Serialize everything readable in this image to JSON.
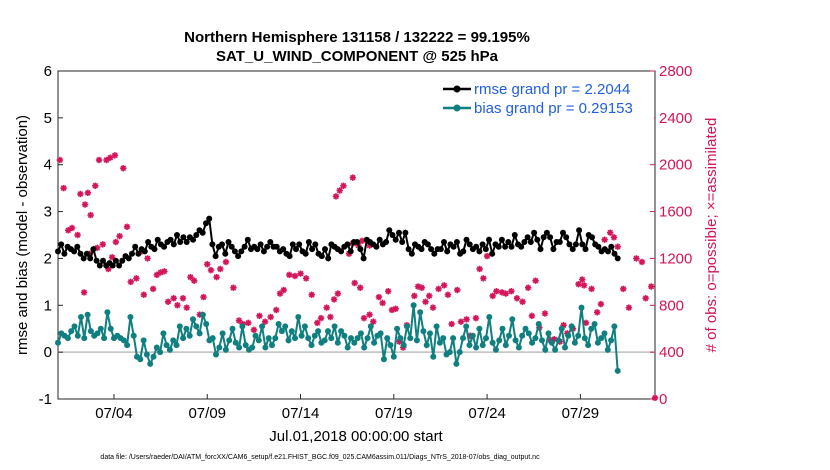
{
  "chart_data": {
    "type": "line",
    "title_line1": "Northern Hemisphere 131158 / 132222 = 99.195%",
    "title_line2": "SAT_U_WIND_COMPONENT @ 525 hPa",
    "xlabel": "Jul.01,2018 00:00:00 start",
    "ylabel_left": "rmse and bias (model - observation)",
    "ylabel_right": "# of obs: o=possible; ×=assimilated",
    "footnote": "data file: /Users/raeder/DAI/ATM_forcXX/CAM6_setup/f.e21.FHIST_BGC.f09_025.CAM6assim.011/Diags_NTrS_2018-07/obs_diag_output.nc",
    "x_tick_labels": [
      "07/04",
      "07/09",
      "07/14",
      "07/19",
      "07/24",
      "07/29"
    ],
    "x_tick_days": [
      4,
      9,
      14,
      19,
      24,
      29
    ],
    "xlim": [
      1,
      33
    ],
    "ylim_left": [
      -1,
      6
    ],
    "left_ticks": [
      "-1",
      "0",
      "1",
      "2",
      "3",
      "4",
      "5",
      "6"
    ],
    "left_tick_values": [
      -1,
      0,
      1,
      2,
      3,
      4,
      5,
      6
    ],
    "ylim_right": [
      0,
      2800
    ],
    "right_ticks": [
      "0",
      "400",
      "800",
      "1200",
      "1600",
      "2000",
      "2400",
      "2800"
    ],
    "right_tick_values": [
      0,
      400,
      800,
      1200,
      1600,
      2000,
      2400,
      2800
    ],
    "legend": [
      {
        "label": "rmse grand pr = 2.2044",
        "color": "#000000"
      },
      {
        "label": "bias grand pr = 0.29153",
        "color": "#0f7f7f"
      }
    ],
    "colors": {
      "rmse": "#000000",
      "bias": "#0f7f7f",
      "obs": "#d4145a",
      "zero_line": "#bdbdbd",
      "legend_text": "#1f5fe0"
    },
    "rmse": [
      2.15,
      2.3,
      2.1,
      2.25,
      2.2,
      2.15,
      2.25,
      2.1,
      2.0,
      2.1,
      2.0,
      2.2,
      1.95,
      1.85,
      1.95,
      1.85,
      1.9,
      1.85,
      1.95,
      1.85,
      1.95,
      2.05,
      2.0,
      2.1,
      2.25,
      2.1,
      2.2,
      2.15,
      2.35,
      2.25,
      2.2,
      2.4,
      2.3,
      2.25,
      2.35,
      2.4,
      2.3,
      2.5,
      2.35,
      2.45,
      2.35,
      2.45,
      2.4,
      2.5,
      2.6,
      2.55,
      2.75,
      2.85,
      2.3,
      2.05,
      2.25,
      2.3,
      2.1,
      2.35,
      2.25,
      2.15,
      2.05,
      2.15,
      2.25,
      2.4,
      2.2,
      2.25,
      2.2,
      2.3,
      2.15,
      2.25,
      2.35,
      2.25,
      2.25,
      2.15,
      2.2,
      2.1,
      2.05,
      2.3,
      2.2,
      2.3,
      2.15,
      2.1,
      2.35,
      2.2,
      2.3,
      2.1,
      2.05,
      2.2,
      2.0,
      2.3,
      2.25,
      2.2,
      2.15,
      2.25,
      2.3,
      2.15,
      2.35,
      2.35,
      2.2,
      2.0,
      2.4,
      2.35,
      2.3,
      2.25,
      2.4,
      2.3,
      2.35,
      2.6,
      2.5,
      2.4,
      2.55,
      2.35,
      2.55,
      2.2,
      2.1,
      2.3,
      2.25,
      2.2,
      2.35,
      2.3,
      2.2,
      2.1,
      2.2,
      2.2,
      2.35,
      2.15,
      2.3,
      2.25,
      2.35,
      2.1,
      2.15,
      2.4,
      2.3,
      2.2,
      2.25,
      2.15,
      2.3,
      2.2,
      2.4,
      2.1,
      2.3,
      2.25,
      2.4,
      2.25,
      2.35,
      2.25,
      2.5,
      2.3,
      2.25,
      2.35,
      2.45,
      2.35,
      2.55,
      2.4,
      2.2,
      2.45,
      2.55,
      2.45,
      2.2,
      2.35,
      2.35,
      2.55,
      2.45,
      2.3,
      2.2,
      2.3,
      2.6,
      2.3,
      2.2,
      2.5,
      2.45,
      2.3,
      2.25,
      2.15,
      2.2,
      2.15,
      2.25,
      2.1,
      2.0
    ],
    "bias": [
      0.2,
      0.4,
      0.35,
      0.3,
      0.45,
      0.55,
      0.35,
      0.75,
      0.3,
      0.8,
      0.45,
      0.35,
      0.4,
      0.5,
      0.3,
      0.85,
      0.5,
      0.3,
      0.35,
      0.3,
      0.25,
      0.15,
      0.75,
      0.35,
      -0.1,
      -0.15,
      0.25,
      -0.05,
      -0.25,
      -0.1,
      0.1,
      0.0,
      0.4,
      0.15,
      0.05,
      0.25,
      0.15,
      0.55,
      0.3,
      0.5,
      0.35,
      0.7,
      0.55,
      0.4,
      0.8,
      0.6,
      0.25,
      0.3,
      -0.05,
      0.1,
      0.4,
      0.05,
      0.25,
      0.5,
      0.2,
      0.1,
      0.55,
      0.15,
      0.05,
      0.1,
      0.35,
      0.25,
      0.55,
      0.1,
      0.3,
      0.15,
      0.3,
      0.6,
      0.45,
      0.55,
      0.25,
      0.45,
      0.3,
      0.75,
      0.35,
      0.55,
      0.3,
      0.15,
      0.35,
      0.45,
      0.2,
      0.25,
      0.45,
      0.3,
      0.55,
      0.2,
      0.45,
      0.35,
      0.1,
      0.3,
      0.2,
      0.3,
      0.4,
      0.1,
      0.3,
      0.55,
      0.2,
      0.35,
      0.4,
      -0.15,
      0.3,
      0.15,
      -0.1,
      0.5,
      0.3,
      0.15,
      0.55,
      0.3,
      1.0,
      0.25,
      0.85,
      0.45,
      0.15,
      0.4,
      -0.1,
      0.55,
      0.2,
      0.3,
      -0.05,
      0.0,
      0.3,
      -0.25,
      0.0,
      0.3,
      0.55,
      0.15,
      0.35,
      0.1,
      0.5,
      0.15,
      0.3,
      0.75,
      0.2,
      0.05,
      0.25,
      0.5,
      0.15,
      0.35,
      0.7,
      0.25,
      0.1,
      0.35,
      0.5,
      0.4,
      0.2,
      0.3,
      0.6,
      0.25,
      0.05,
      0.4,
      0.2,
      0.05,
      0.25,
      0.5,
      0.1,
      0.35,
      0.55,
      0.2,
      0.35,
      0.95,
      0.3,
      0.15,
      0.5,
      0.6,
      0.2,
      0.3,
      0.4,
      0.05,
      0.25,
      0.55,
      -0.4
    ],
    "obs_assimilated": [
      [
        1.1,
        2040
      ],
      [
        1.3,
        1800
      ],
      [
        1.55,
        1440
      ],
      [
        1.75,
        1460
      ],
      [
        2.05,
        1400
      ],
      [
        2.2,
        1750
      ],
      [
        2.45,
        1660
      ],
      [
        2.6,
        1760
      ],
      [
        2.75,
        1570
      ],
      [
        3.0,
        1820
      ],
      [
        3.2,
        2040
      ],
      [
        2.4,
        910
      ],
      [
        2.7,
        1240
      ],
      [
        3.1,
        1290
      ],
      [
        3.4,
        1320
      ],
      [
        3.7,
        1110
      ],
      [
        3.9,
        1210
      ],
      [
        4.1,
        1340
      ],
      [
        3.6,
        2040
      ],
      [
        3.8,
        2060
      ],
      [
        4.05,
        2080
      ],
      [
        4.5,
        1970
      ],
      [
        4.3,
        1390
      ],
      [
        4.7,
        1470
      ],
      [
        4.9,
        1000
      ],
      [
        5.2,
        1030
      ],
      [
        5.5,
        1260
      ],
      [
        5.6,
        890
      ],
      [
        5.8,
        1200
      ],
      [
        6.1,
        940
      ],
      [
        6.3,
        1060
      ],
      [
        6.5,
        1080
      ],
      [
        6.7,
        1090
      ],
      [
        6.9,
        830
      ],
      [
        7.2,
        860
      ],
      [
        7.4,
        800
      ],
      [
        7.7,
        860
      ],
      [
        7.9,
        780
      ],
      [
        8.1,
        1040
      ],
      [
        8.3,
        1010
      ],
      [
        8.6,
        720
      ],
      [
        8.8,
        870
      ],
      [
        9.0,
        1150
      ],
      [
        9.2,
        1100
      ],
      [
        9.5,
        1040
      ],
      [
        9.7,
        1110
      ],
      [
        10.0,
        1170
      ],
      [
        10.4,
        950
      ],
      [
        10.7,
        670
      ],
      [
        10.9,
        640
      ],
      [
        11.2,
        650
      ],
      [
        11.5,
        590
      ],
      [
        11.8,
        710
      ],
      [
        12.1,
        660
      ],
      [
        12.4,
        700
      ],
      [
        12.7,
        760
      ],
      [
        12.9,
        900
      ],
      [
        13.1,
        930
      ],
      [
        13.4,
        1060
      ],
      [
        13.7,
        1050
      ],
      [
        14.0,
        1070
      ],
      [
        14.3,
        1030
      ],
      [
        14.6,
        890
      ],
      [
        14.9,
        650
      ],
      [
        15.1,
        690
      ],
      [
        15.4,
        780
      ],
      [
        15.6,
        700
      ],
      [
        15.8,
        850
      ],
      [
        16.0,
        900
      ],
      [
        15.9,
        1730
      ],
      [
        16.1,
        1780
      ],
      [
        16.3,
        1820
      ],
      [
        16.8,
        1890
      ],
      [
        16.6,
        1240
      ],
      [
        16.8,
        1330
      ],
      [
        17.1,
        1310
      ],
      [
        17.3,
        1350
      ],
      [
        17.7,
        1310
      ],
      [
        16.9,
        990
      ],
      [
        17.2,
        950
      ],
      [
        17.4,
        690
      ],
      [
        17.7,
        720
      ],
      [
        17.9,
        660
      ],
      [
        18.2,
        870
      ],
      [
        18.4,
        820
      ],
      [
        18.7,
        920
      ],
      [
        18.9,
        760
      ],
      [
        19.1,
        770
      ],
      [
        19.3,
        490
      ],
      [
        19.5,
        440
      ],
      [
        19.7,
        630
      ],
      [
        20.1,
        880
      ],
      [
        20.3,
        960
      ],
      [
        20.5,
        950
      ],
      [
        20.7,
        830
      ],
      [
        20.9,
        880
      ],
      [
        21.1,
        780
      ],
      [
        21.4,
        940
      ],
      [
        21.7,
        970
      ],
      [
        21.9,
        890
      ],
      [
        22.1,
        640
      ],
      [
        22.4,
        930
      ],
      [
        22.6,
        660
      ],
      [
        22.9,
        680
      ],
      [
        23.1,
        540
      ],
      [
        23.4,
        690
      ],
      [
        23.6,
        1110
      ],
      [
        23.8,
        1030
      ],
      [
        24.0,
        1220
      ],
      [
        24.3,
        880
      ],
      [
        24.5,
        920
      ],
      [
        24.8,
        910
      ],
      [
        25.0,
        900
      ],
      [
        25.3,
        920
      ],
      [
        25.6,
        860
      ],
      [
        25.9,
        830
      ],
      [
        26.2,
        950
      ],
      [
        26.6,
        1010
      ],
      [
        26.4,
        710
      ],
      [
        26.8,
        610
      ],
      [
        27.1,
        730
      ],
      [
        27.4,
        500
      ],
      [
        27.6,
        510
      ],
      [
        27.9,
        490
      ],
      [
        28.1,
        630
      ],
      [
        28.3,
        560
      ],
      [
        28.6,
        600
      ],
      [
        28.9,
        980
      ],
      [
        29.2,
        970
      ],
      [
        29.1,
        1020
      ],
      [
        29.3,
        650
      ],
      [
        29.6,
        940
      ],
      [
        29.9,
        740
      ],
      [
        30.1,
        810
      ],
      [
        30.3,
        1360
      ],
      [
        30.6,
        1420
      ],
      [
        30.8,
        1380
      ],
      [
        31.0,
        1300
      ],
      [
        31.3,
        940
      ],
      [
        31.6,
        780
      ],
      [
        32.0,
        1200
      ],
      [
        32.3,
        1170
      ],
      [
        32.5,
        860
      ],
      [
        32.8,
        960
      ],
      [
        33.0,
        10
      ]
    ]
  }
}
